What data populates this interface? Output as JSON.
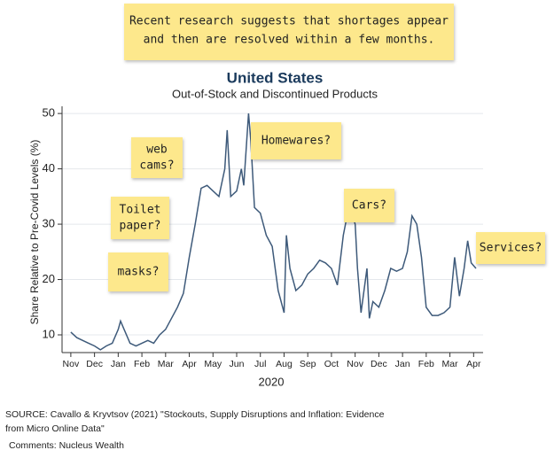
{
  "chart_data": {
    "type": "line",
    "note": [
      "Recent research suggests that shortages appear",
      "and then are resolved within a few months."
    ],
    "title": "United States",
    "subtitle": "Out-of-Stock and Discontinued Products",
    "y_label": "Share Relative to Pre-Covid Levels (%)",
    "x_label": "2020",
    "color": "#3e5a7a",
    "grid": true,
    "xlim": [
      -0.37,
      17.4
    ],
    "ylim": [
      6.8,
      51.3
    ],
    "yticks": [
      10,
      20,
      30,
      40,
      50
    ],
    "xticks": [
      {
        "value": 0,
        "label": "Nov"
      },
      {
        "value": 1,
        "label": "Dec"
      },
      {
        "value": 2,
        "label": "Jan"
      },
      {
        "value": 3,
        "label": "Feb"
      },
      {
        "value": 4,
        "label": "Mar"
      },
      {
        "value": 5,
        "label": "Apr"
      },
      {
        "value": 6,
        "label": "May"
      },
      {
        "value": 7,
        "label": "Jun"
      },
      {
        "value": 8,
        "label": "Jul"
      },
      {
        "value": 9,
        "label": "Aug"
      },
      {
        "value": 10,
        "label": "Sep"
      },
      {
        "value": 11,
        "label": "Oct"
      },
      {
        "value": 12,
        "label": "Nov"
      },
      {
        "value": 13,
        "label": "Dec"
      },
      {
        "value": 14,
        "label": "Jan"
      },
      {
        "value": 15,
        "label": "Feb"
      },
      {
        "value": 16,
        "label": "Mar"
      },
      {
        "value": 17,
        "label": "Apr"
      }
    ],
    "x": [
      0,
      0.25,
      0.5,
      0.75,
      1,
      1.25,
      1.5,
      1.75,
      2,
      2.1,
      2.25,
      2.5,
      2.75,
      3,
      3.25,
      3.5,
      3.75,
      4,
      4.25,
      4.5,
      4.75,
      5,
      5.25,
      5.5,
      5.75,
      6,
      6.25,
      6.5,
      6.6,
      6.75,
      7,
      7.2,
      7.3,
      7.5,
      7.6,
      7.75,
      8,
      8.25,
      8.5,
      8.75,
      9,
      9.1,
      9.25,
      9.5,
      9.75,
      10,
      10.25,
      10.5,
      10.75,
      11,
      11.25,
      11.5,
      11.75,
      12,
      12.1,
      12.25,
      12.5,
      12.6,
      12.75,
      13,
      13.25,
      13.5,
      13.75,
      14,
      14.2,
      14.4,
      14.6,
      14.8,
      15,
      15.25,
      15.5,
      15.75,
      16,
      16.2,
      16.4,
      16.6,
      16.75,
      16.9,
      17.1
    ],
    "values": [
      10.5,
      9.5,
      9,
      8.5,
      8,
      7.3,
      8,
      8.5,
      11,
      12.5,
      11,
      8.5,
      8,
      8.5,
      9,
      8.5,
      10,
      11,
      13,
      15,
      17.5,
      24,
      30,
      36.5,
      37,
      36,
      35,
      40,
      47,
      35,
      36,
      40,
      37,
      50,
      45,
      33,
      32,
      28,
      26,
      18,
      14,
      28,
      22,
      18,
      19,
      21,
      22,
      23.5,
      23,
      22,
      19,
      28,
      33.5,
      30,
      22,
      14,
      22,
      13,
      16,
      15,
      18,
      22,
      21.5,
      22,
      25,
      31.5,
      30,
      24,
      15,
      13.5,
      13.5,
      14,
      15,
      24,
      17,
      22,
      27,
      23,
      22
    ],
    "annotations": [
      [
        "web",
        "cams?"
      ],
      [
        "Toilet",
        "paper?"
      ],
      [
        "masks?"
      ],
      [
        "Homewares?"
      ],
      [
        "Cars?"
      ],
      [
        "Services?"
      ]
    ],
    "source": [
      "SOURCE: Cavallo & Kryvtsov (2021) \"Stockouts, Supply Disruptions and Inflation: Evidence",
      "from Micro Online Data\""
    ],
    "comments": "Comments: Nucleus Wealth"
  }
}
